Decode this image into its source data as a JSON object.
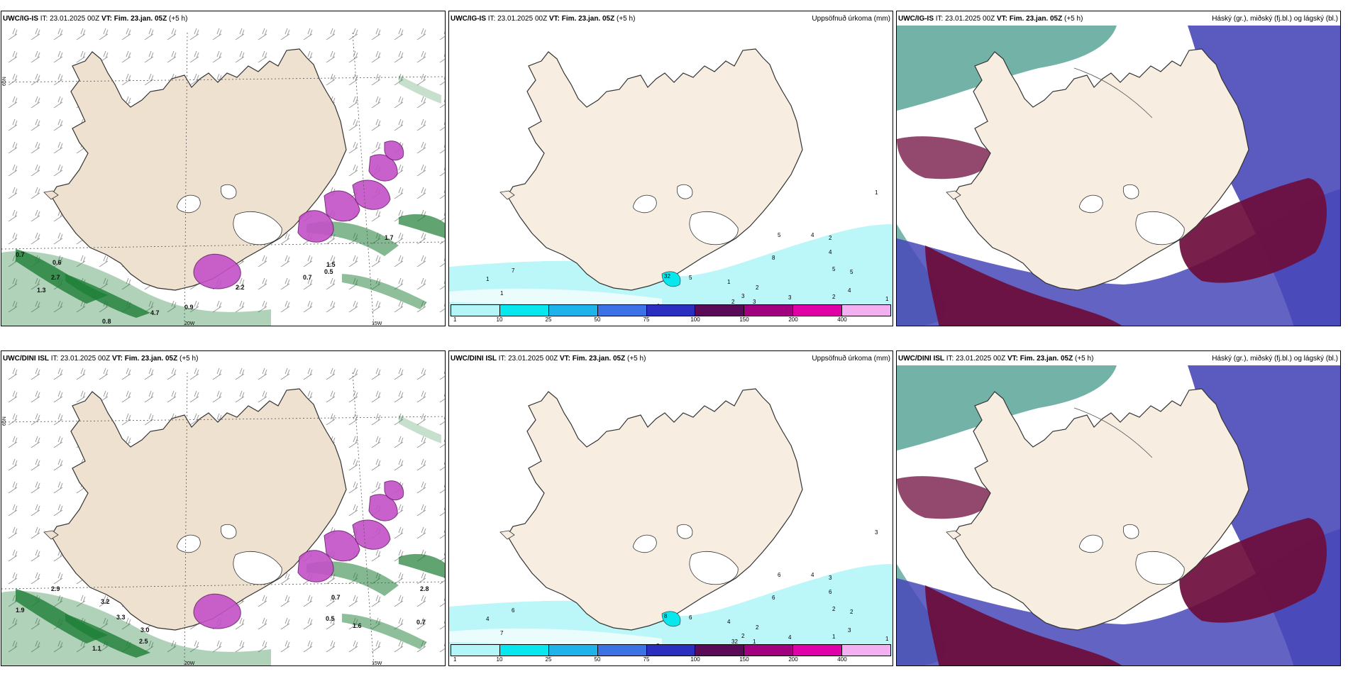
{
  "rows": [
    {
      "model": "UWC/IG-IS",
      "it_label": "IT:",
      "it_value": "23.01.2025 00Z",
      "vt_label": "VT:",
      "vt_value": "Fim. 23.jan. 05Z",
      "lead": "(+5 h)",
      "panels": [
        {
          "kind": "wind",
          "lat_labels": [
            "65N"
          ],
          "lon_labels": [
            "20W",
            "15W"
          ],
          "values": [
            "0.7",
            "0.6",
            "2.7",
            "1.3",
            "4.7",
            "0.9",
            "0.8",
            "0.7",
            "1.5",
            "1.7",
            "0.5",
            "2.2"
          ]
        },
        {
          "kind": "precip",
          "right_title": "Uppsöfnuð úrkoma (mm)",
          "values": [
            "1",
            "7",
            "1",
            "3",
            "4",
            "32",
            "5",
            "1",
            "2",
            "3",
            "3",
            "2",
            "8",
            "5",
            "4",
            "2",
            "4",
            "5",
            "4",
            "5",
            "1",
            "3",
            "2",
            "1",
            "1"
          ]
        },
        {
          "kind": "cloud",
          "right_title": "Háský (gr.), miðský (fj.bl.) og lágský (bl.)"
        }
      ]
    },
    {
      "model": "UWC/DINI ISL",
      "it_label": "IT:",
      "it_value": "23.01.2025 00Z",
      "vt_label": "VT:",
      "vt_value": "Fim. 23.jan. 05Z",
      "lead": "(+5 h)",
      "panels": [
        {
          "kind": "wind",
          "lat_labels": [
            "65N"
          ],
          "lon_labels": [
            "20W",
            "15W"
          ],
          "values": [
            "1.9",
            "2.9",
            "3.2",
            "3.3",
            "3.0",
            "2.5",
            "1.1",
            "0.7",
            "0.5",
            "1.6",
            "2.8",
            "0.7"
          ]
        },
        {
          "kind": "precip",
          "right_title": "Uppsöfnuð úrkoma (mm)",
          "values": [
            "4",
            "6",
            "7",
            "4",
            "2",
            "8",
            "6",
            "4",
            "32",
            "2",
            "1",
            "2",
            "6",
            "6",
            "4",
            "3",
            "6",
            "2",
            "3",
            "2",
            "3",
            "4",
            "1",
            "1",
            "1"
          ]
        },
        {
          "kind": "cloud",
          "right_title": "Háský (gr.), miðský (fj.bl.) og lágský (bl.)"
        }
      ]
    }
  ],
  "precip_scale": {
    "labels": [
      "1",
      "10",
      "25",
      "50",
      "75",
      "100",
      "150",
      "200",
      "400"
    ],
    "colors": [
      "#b4f5f8",
      "#08e6ee",
      "#1eb4ea",
      "#3c72e6",
      "#2b2fc0",
      "#5a0b57",
      "#a1007e",
      "#e000a8",
      "#f2b0f0"
    ]
  },
  "colors": {
    "land": "#f7eee1",
    "land_wind": "#efe1d0",
    "sea_cyan": "#b4f5f8",
    "cloud_high": "#5aa598",
    "cloud_mid": "#6d0c3c",
    "cloud_low": "#4848b8",
    "wind_green": "#1e7e36",
    "snow_magenta": "#c451c8"
  }
}
